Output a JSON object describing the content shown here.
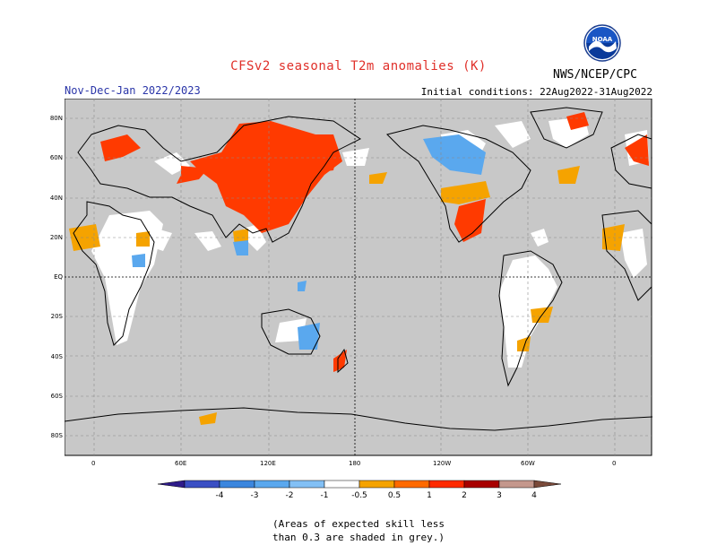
{
  "header": {
    "title": "CFSv2 seasonal T2m anomalies (K)",
    "agency": "NWS/NCEP/CPC",
    "season": "Nov-Dec-Jan 2022/2023",
    "initial_conditions": "Initial conditions: 22Aug2022-31Aug2022"
  },
  "logo": {
    "icon": "noaa-logo-icon",
    "text": "NOAA"
  },
  "map": {
    "lat_labels": [
      "80N",
      "60N",
      "40N",
      "20N",
      "EQ",
      "20S",
      "40S",
      "60S",
      "80S"
    ],
    "lon_labels": [
      "0",
      "60E",
      "120E",
      "180",
      "120W",
      "60W",
      "0"
    ],
    "colors": {
      "ocean_land_grey": "#c8c8c8",
      "insignificant_land": "#ffffff"
    }
  },
  "legend": {
    "tick_labels": [
      "-4",
      "-3",
      "-2",
      "-1",
      "-0.5",
      "0.5",
      "1",
      "2",
      "3",
      "4"
    ],
    "colors": [
      "#2e1b8a",
      "#3a4fc4",
      "#3b86de",
      "#5aa8ee",
      "#82c0f5",
      "#ffffff",
      "#f5a300",
      "#ff6a00",
      "#ff2a00",
      "#a80000",
      "#c4978c",
      "#7a4a3a"
    ]
  },
  "note": {
    "line1": "(Areas of expected skill less",
    "line2": "than 0.3 are shaded in grey.)"
  }
}
